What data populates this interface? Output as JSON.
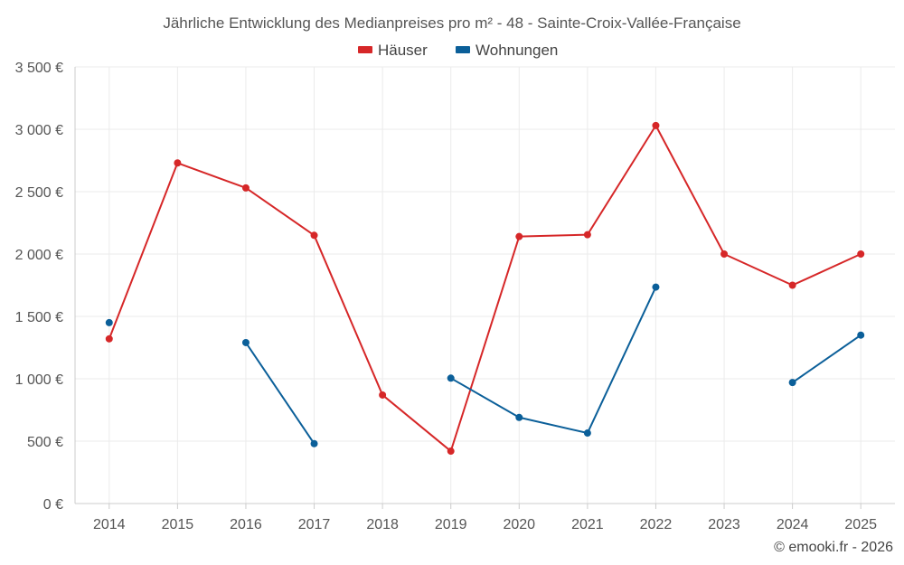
{
  "chart_data": {
    "type": "line",
    "title": "Jährliche Entwicklung des Medianpreises pro m² - 48 - Sainte-Croix-Vallée-Française",
    "xlabel": "",
    "ylabel": "",
    "categories": [
      "2014",
      "2015",
      "2016",
      "2017",
      "2018",
      "2019",
      "2020",
      "2021",
      "2022",
      "2023",
      "2024",
      "2025"
    ],
    "ylim": [
      0,
      3500
    ],
    "y_ticks": [
      0,
      500,
      1000,
      1500,
      2000,
      2500,
      3000,
      3500
    ],
    "y_tick_labels": [
      "0 €",
      "500 €",
      "1 000 €",
      "1 500 €",
      "2 000 €",
      "2 500 €",
      "3 000 €",
      "3 500 €"
    ],
    "grid": true,
    "legend_position": "top-center",
    "series": [
      {
        "name": "Häuser",
        "color": "#d62728",
        "values": [
          1320,
          2730,
          2530,
          2150,
          870,
          420,
          2140,
          2155,
          3030,
          2000,
          1750,
          2000
        ]
      },
      {
        "name": "Wohnungen",
        "color": "#0b5f99",
        "values": [
          1450,
          null,
          1290,
          480,
          null,
          1005,
          690,
          565,
          1735,
          null,
          970,
          1350
        ]
      }
    ]
  },
  "credit": "© emooki.fr - 2026"
}
